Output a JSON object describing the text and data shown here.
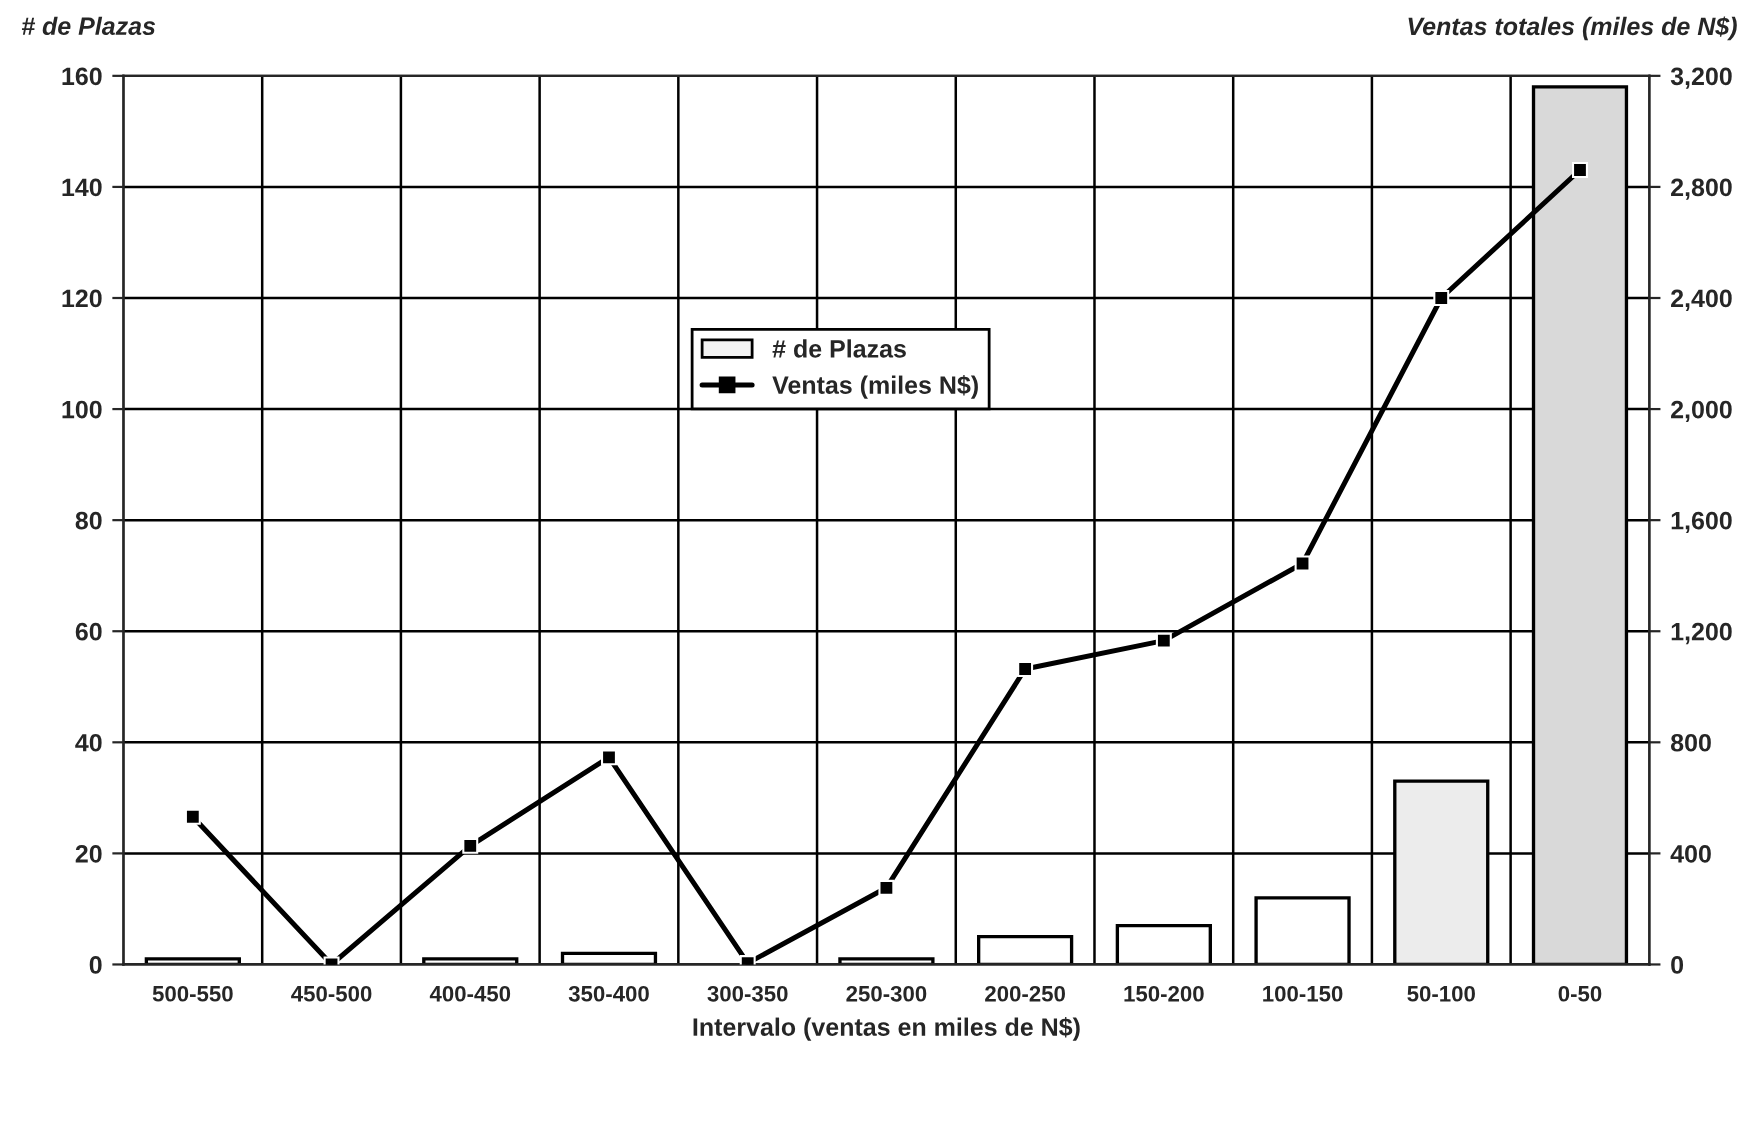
{
  "chart_data": {
    "type": "bar",
    "xlabel": "Intervalo (ventas en miles de N$)",
    "ylabel": "# de Plazas",
    "y2label": "Ventas totales (miles de N$)",
    "categories": [
      "500-550",
      "450-500",
      "400-450",
      "350-400",
      "300-350",
      "250-300",
      "200-250",
      "150-200",
      "100-150",
      "50-100",
      "0-50"
    ],
    "series": [
      {
        "name": "# de Plazas",
        "color": "#f2f2f2",
        "colors": [
          "#ffffff",
          "#ffffff",
          "#ffffff",
          "#ffffff",
          "#ffffff",
          "#ffffff",
          "#ffffff",
          "#ffffff",
          "#ffffff",
          "#ececec",
          "#d9d9d9"
        ],
        "values": [
          1,
          null,
          1,
          2,
          null,
          1,
          5,
          7,
          12,
          33,
          158
        ]
      },
      {
        "name": "Ventas (miles N$)",
        "type": "line",
        "axis": "y2",
        "color": "#000000",
        "marker": "square",
        "line_style": "solid",
        "values": [
          532,
          0,
          427,
          746,
          5,
          276,
          1064,
          1166,
          1444,
          2400,
          2861
        ]
      }
    ],
    "ylim": [
      0,
      160
    ],
    "yticks": [
      0,
      20,
      40,
      60,
      80,
      100,
      120,
      140,
      160
    ],
    "y2lim": [
      0,
      3200
    ],
    "y2ticks": [
      {
        "value": 0,
        "label": "0"
      },
      {
        "value": 400,
        "label": "400"
      },
      {
        "value": 800,
        "label": "800"
      },
      {
        "value": 1200,
        "label": "1,200"
      },
      {
        "value": 1600,
        "label": "1,600"
      },
      {
        "value": 2000,
        "label": "2,000"
      },
      {
        "value": 2400,
        "label": "2,400"
      },
      {
        "value": 2800,
        "label": "2,800"
      },
      {
        "value": 3200,
        "label": "3,200"
      }
    ],
    "grid": true,
    "legend": "center"
  }
}
